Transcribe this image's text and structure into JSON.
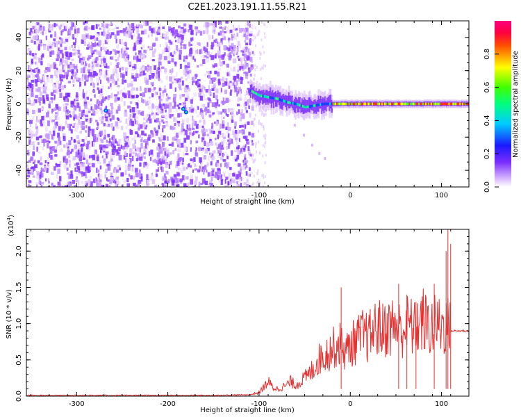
{
  "title": "C2E1.2023.191.11.55.R21",
  "colors": {
    "snr_line": "#e83030",
    "background": "#ffffff",
    "spectrogram_low": "#7a2cff",
    "spectrogram_high": "#ff3030"
  },
  "chart_data": [
    {
      "type": "heatmap",
      "xlabel": "Height of straight line (km)",
      "ylabel": "Frequency (Hz)",
      "xlim": [
        -355,
        130
      ],
      "ylim": [
        -50,
        50
      ],
      "xticks": [
        -300,
        -200,
        -100,
        0,
        100
      ],
      "yticks": [
        -40,
        -20,
        0,
        20,
        40
      ],
      "xtick_labels": [
        "-300",
        "-200",
        "-100",
        "0",
        "100"
      ],
      "ytick_labels": [
        "-40",
        "-20",
        "0",
        "20",
        "40"
      ],
      "grid": false,
      "noise_region_x": [
        -355,
        -108
      ],
      "signal_trace": {
        "x": [
          -110,
          -100,
          -90,
          -80,
          -70,
          -60,
          -50,
          -40,
          -30,
          -20,
          -10,
          0,
          20,
          40,
          60,
          80,
          100,
          120,
          130
        ],
        "freq": [
          8,
          5,
          4,
          3,
          1,
          0,
          -2,
          -1,
          0,
          0,
          0,
          0,
          0,
          0,
          0,
          0,
          0,
          0,
          0
        ]
      },
      "faint_trail": {
        "x": [
          -62,
          -52,
          -43,
          -35,
          -29
        ],
        "freq": [
          -12,
          -18,
          -24,
          -29,
          -32
        ]
      },
      "colorbar": {
        "label": "Normalized spectral amplitude",
        "range": [
          0,
          1
        ],
        "ticks": [
          0.0,
          0.2,
          0.4,
          0.6,
          0.8
        ],
        "tick_labels": [
          "0.0",
          "0.2",
          "0.4",
          "0.6",
          "0.8"
        ],
        "colormap": "white-purple-blue-cyan-green-yellow-red-magenta"
      }
    },
    {
      "type": "line",
      "xlabel": "Height of straight line (km)",
      "ylabel": "SNR (10 * v/v)",
      "exponent_label": "(x10",
      "exponent_power": "4",
      "exponent_close": ")",
      "xlim": [
        -355,
        130
      ],
      "ylim": [
        0,
        2.3
      ],
      "xticks": [
        -300,
        -200,
        -100,
        0,
        100
      ],
      "yticks": [
        0.0,
        0.5,
        1.0,
        1.5,
        2.0
      ],
      "xtick_labels": [
        "-300",
        "-200",
        "-100",
        "0",
        "100"
      ],
      "ytick_labels": [
        "0.0",
        "0.5",
        "1.0",
        "1.5",
        "2.0"
      ],
      "grid": false,
      "series": [
        {
          "x": [
            -355,
            -300,
            -250,
            -200,
            -150,
            -110,
            -100,
            -95,
            -90,
            -85,
            -80,
            -75,
            -70,
            -65,
            -60,
            -55,
            -50,
            -45,
            -40,
            -35,
            -30,
            -25,
            -20,
            -15,
            -10,
            -5,
            0,
            5,
            10,
            15,
            20,
            25,
            30,
            35,
            40,
            45,
            50,
            55,
            60,
            65,
            70,
            75,
            80,
            85,
            90,
            95,
            100,
            105,
            108,
            110,
            115,
            120,
            130
          ],
          "y": [
            0.01,
            0.01,
            0.01,
            0.01,
            0.01,
            0.02,
            0.05,
            0.12,
            0.2,
            0.12,
            0.1,
            0.12,
            0.15,
            0.2,
            0.15,
            0.2,
            0.25,
            0.3,
            0.4,
            0.5,
            0.55,
            0.6,
            0.65,
            0.7,
            0.72,
            0.6,
            0.7,
            0.75,
            0.8,
            0.85,
            0.8,
            0.9,
            0.95,
            0.9,
            0.95,
            0.95,
            1.0,
            0.9,
            0.95,
            1.0,
            0.9,
            1.0,
            1.05,
            0.95,
            0.95,
            1.0,
            0.95,
            1.0,
            0.95,
            0.9,
            0.9,
            0.9,
            0.9
          ]
        }
      ],
      "spikes": [
        {
          "x": -10,
          "y": 1.5
        },
        {
          "x": 53,
          "y": 1.55
        },
        {
          "x": 62,
          "y": 1.4
        },
        {
          "x": 72,
          "y": 1.3
        },
        {
          "x": 92,
          "y": 1.55
        },
        {
          "x": 105,
          "y": 2.0
        },
        {
          "x": 107,
          "y": 2.3
        },
        {
          "x": 110,
          "y": 2.1
        }
      ]
    }
  ]
}
